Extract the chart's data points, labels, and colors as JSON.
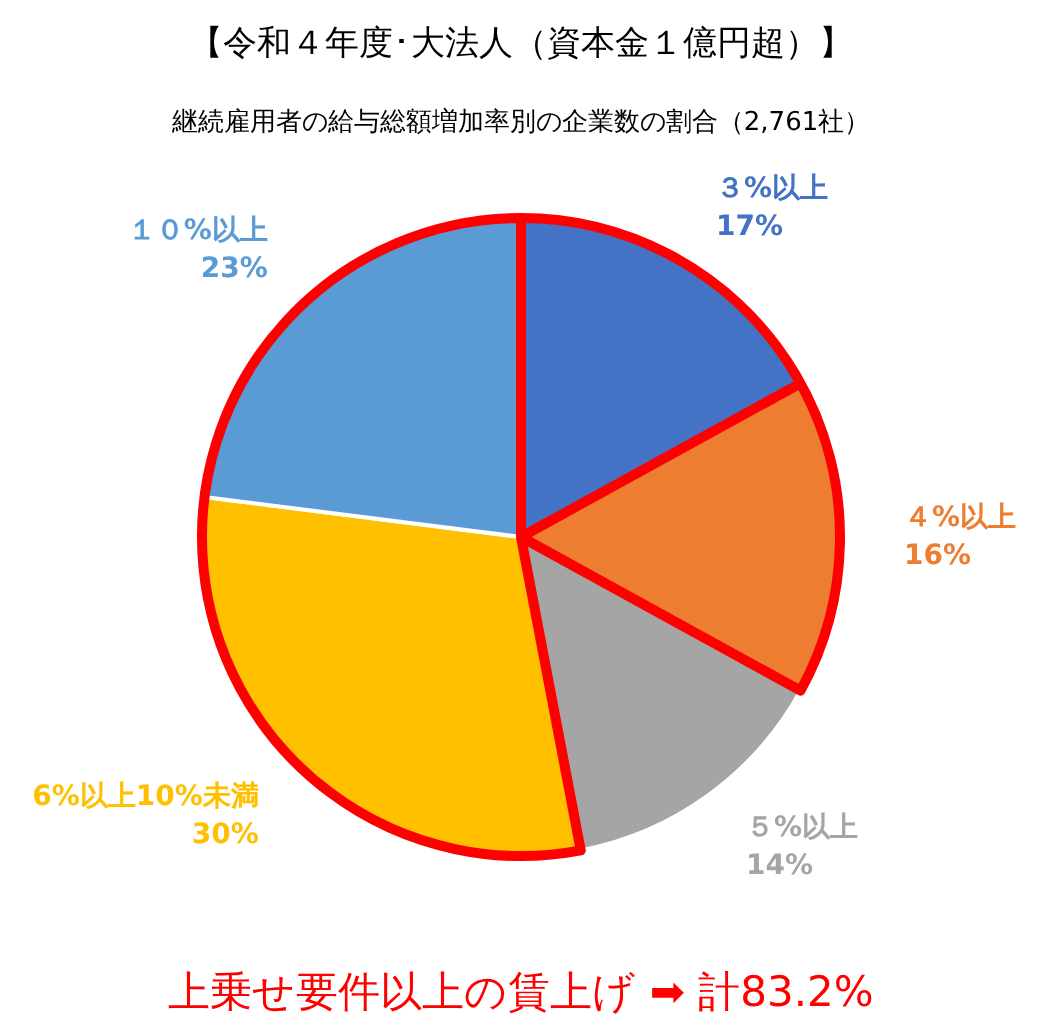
{
  "chart_data": {
    "type": "pie",
    "title": "【令和４年度･大法人（資本金１億円超）】",
    "subtitle": "継続雇用者の給与総額増加率別の企業数の割合（2,761社）",
    "categories": [
      "３%以上",
      "４%以上",
      "５%以上",
      "6%以上10%未満",
      "１０%以上"
    ],
    "values": [
      17,
      16,
      14,
      30,
      23
    ],
    "colors": [
      "#4472c4",
      "#ed7d31",
      "#a5a5a5",
      "#ffc000",
      "#5b9bd5"
    ],
    "value_labels": [
      "17%",
      "16%",
      "14%",
      "30%",
      "23%"
    ],
    "annotations": [
      "上乗せ要件以上の賃上げ ➡ 計83.2%"
    ]
  }
}
